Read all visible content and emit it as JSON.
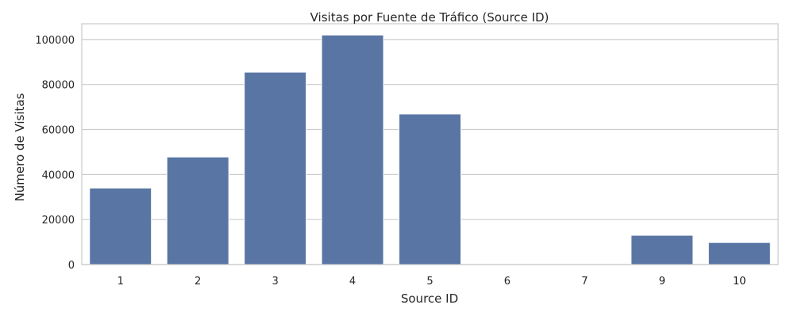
{
  "chart_data": {
    "type": "bar",
    "title": "Visitas por Fuente de Tráfico (Source ID)",
    "xlabel": "Source ID",
    "ylabel": "Número de Visitas",
    "categories": [
      "1",
      "2",
      "3",
      "4",
      "5",
      "6",
      "7",
      "9",
      "10"
    ],
    "values": [
      34000,
      47800,
      85500,
      102000,
      66900,
      0,
      0,
      13000,
      9800
    ],
    "ylim": [
      0,
      107000
    ],
    "yticks": [
      0,
      20000,
      40000,
      60000,
      80000,
      100000
    ],
    "ytick_labels": [
      "0",
      "20000",
      "40000",
      "60000",
      "80000",
      "100000"
    ],
    "grid": "y",
    "bar_color": "#5875a4",
    "grid_color": "#cccccc",
    "spine_color": "#cccccc"
  }
}
